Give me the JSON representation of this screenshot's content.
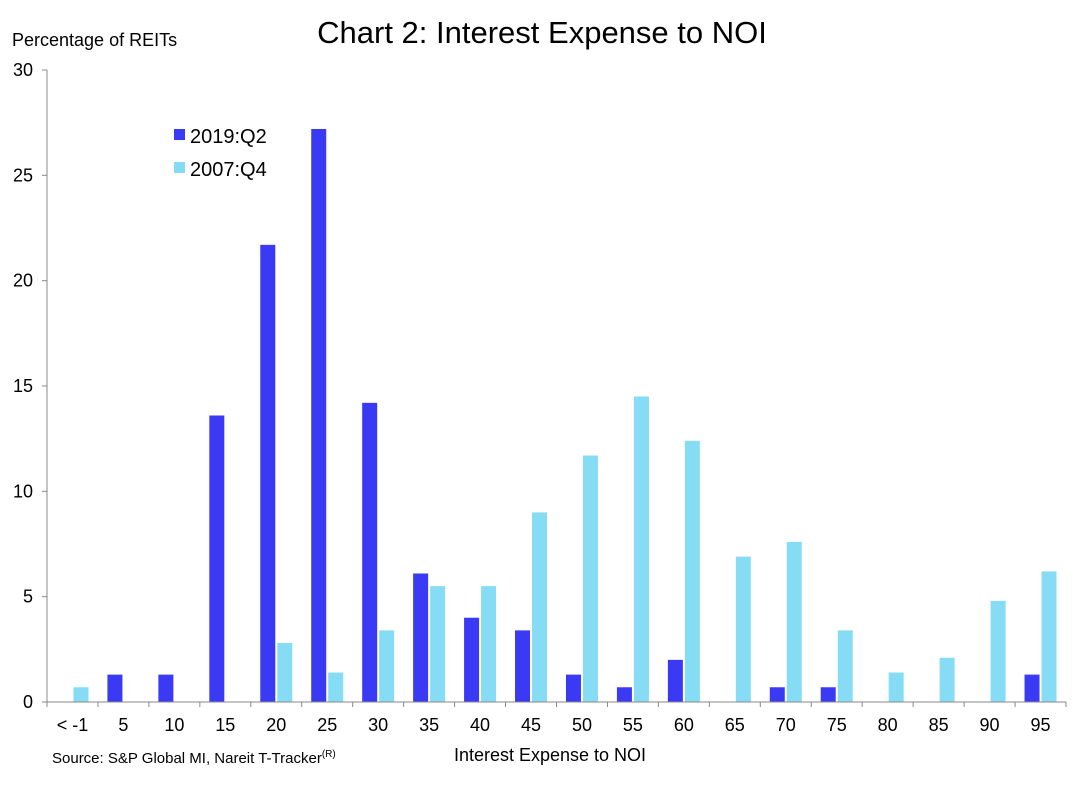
{
  "chart_data": {
    "type": "bar",
    "title": "Chart 2: Interest Expense to NOI",
    "ylabel": "Percentage of REITs",
    "xlabel": "Interest Expense to NOI",
    "source": "Source: S&P Global MI, Nareit T-Tracker",
    "source_superscript": "(R)",
    "ylim": [
      0,
      30
    ],
    "yticks": [
      0,
      5,
      10,
      15,
      20,
      25,
      30
    ],
    "categories": [
      "< -1",
      "5",
      "10",
      "15",
      "20",
      "25",
      "30",
      "35",
      "40",
      "45",
      "50",
      "55",
      "60",
      "65",
      "70",
      "75",
      "80",
      "85",
      "90",
      "95"
    ],
    "series": [
      {
        "name": "2019:Q2",
        "color": "#3a3af5",
        "values": [
          0,
          1.3,
          1.3,
          13.6,
          21.7,
          27.2,
          14.2,
          6.1,
          4.0,
          3.4,
          1.3,
          0.7,
          2.0,
          0,
          0.7,
          0.7,
          0,
          0,
          0,
          1.3
        ]
      },
      {
        "name": "2007:Q4",
        "color": "#87dcf5",
        "values": [
          0.7,
          0,
          0,
          0,
          2.8,
          1.4,
          3.4,
          5.5,
          5.5,
          9.0,
          11.7,
          14.5,
          12.4,
          6.9,
          7.6,
          3.4,
          1.4,
          2.1,
          4.8,
          6.2
        ]
      }
    ],
    "legend": "top-left",
    "grid": false
  }
}
